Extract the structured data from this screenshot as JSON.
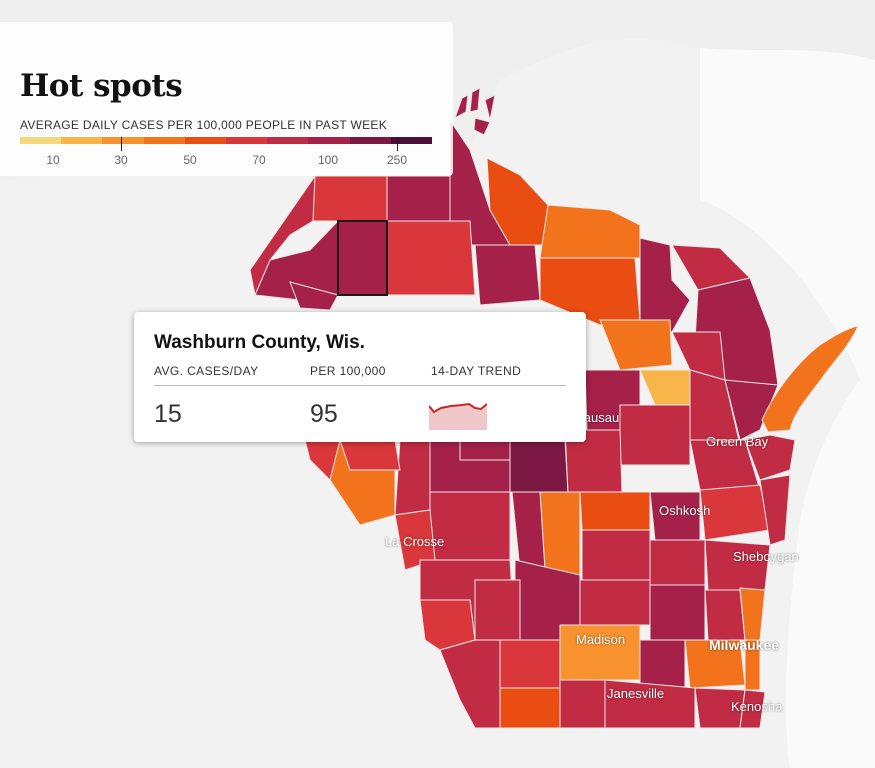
{
  "title": "Hot spots",
  "legend": {
    "subtitle": "AVERAGE DAILY CASES PER 100,000 PEOPLE IN PAST WEEK",
    "ticks": [
      "10",
      "30",
      "50",
      "70",
      "100",
      "250"
    ],
    "scale_colors": [
      "#f5d87e",
      "#f9b54a",
      "#f7922f",
      "#f3721c",
      "#e94d12",
      "#d9373b",
      "#c22b44",
      "#a6214a",
      "#7d1842",
      "#4a0f36"
    ]
  },
  "map": {
    "cities": [
      "Green Bay",
      "Oshkosh",
      "Sheboygan",
      "La Crosse",
      "Madison",
      "Milwaukee",
      "Janesville",
      "Kenosha",
      "Wausau"
    ],
    "highlighted_county": "Washburn County, Wis."
  },
  "tooltip": {
    "county": "Washburn County, Wis.",
    "headers": {
      "cases": "AVG. CASES/DAY",
      "per100k": "PER 100,000",
      "trend": "14-DAY TREND"
    },
    "values": {
      "cases": "15",
      "per100k": "95"
    },
    "trend_color": "#c62828",
    "trend_fill": "#f0c7c8"
  }
}
